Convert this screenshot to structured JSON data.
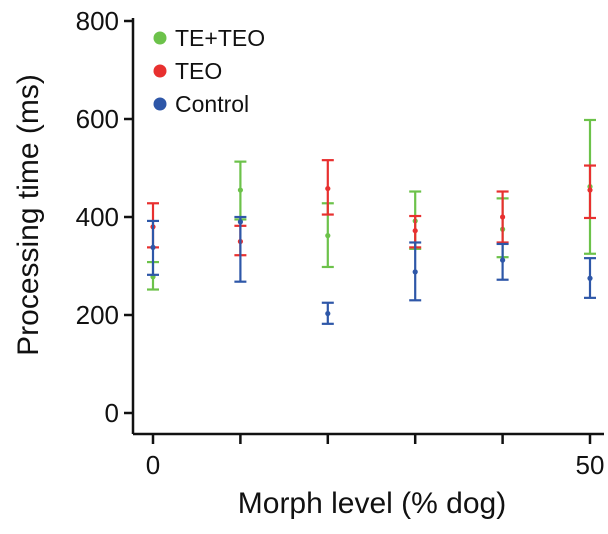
{
  "chart_data": {
    "type": "scatter",
    "title": "",
    "xlabel": "Morph level (% dog)",
    "ylabel": "Processing time (ms)",
    "xlim": [
      0,
      50
    ],
    "ylim": [
      0,
      800
    ],
    "x_ticks": [
      0,
      10,
      20,
      30,
      40,
      50
    ],
    "x_tick_labels": [
      "0",
      "",
      "",
      "",
      "",
      "50"
    ],
    "y_ticks": [
      0,
      200,
      400,
      600,
      800
    ],
    "y_tick_labels": [
      "0",
      "200",
      "400",
      "600",
      "800"
    ],
    "grid": false,
    "legend_position": "top-left",
    "error_bars": true,
    "series": [
      {
        "name": "TE+TEO",
        "color": "#6cc24a",
        "x": [
          0,
          10,
          20,
          30,
          40,
          50
        ],
        "y": [
          278,
          455,
          362,
          392,
          375,
          462
        ],
        "err_low": [
          252,
          395,
          298,
          335,
          318,
          325
        ],
        "err_high": [
          308,
          513,
          428,
          452,
          438,
          598
        ]
      },
      {
        "name": "TEO",
        "color": "#e8302f",
        "x": [
          0,
          10,
          20,
          30,
          40,
          50
        ],
        "y": [
          380,
          350,
          458,
          372,
          400,
          455
        ],
        "err_low": [
          338,
          322,
          405,
          338,
          348,
          398
        ],
        "err_high": [
          428,
          382,
          516,
          402,
          452,
          505
        ]
      },
      {
        "name": "Control",
        "color": "#2e57a8",
        "x": [
          0,
          10,
          20,
          30,
          40,
          50
        ],
        "y": [
          338,
          390,
          203,
          288,
          312,
          275
        ],
        "err_low": [
          282,
          268,
          182,
          230,
          272,
          235
        ],
        "err_high": [
          392,
          400,
          225,
          348,
          345,
          316
        ]
      }
    ]
  }
}
